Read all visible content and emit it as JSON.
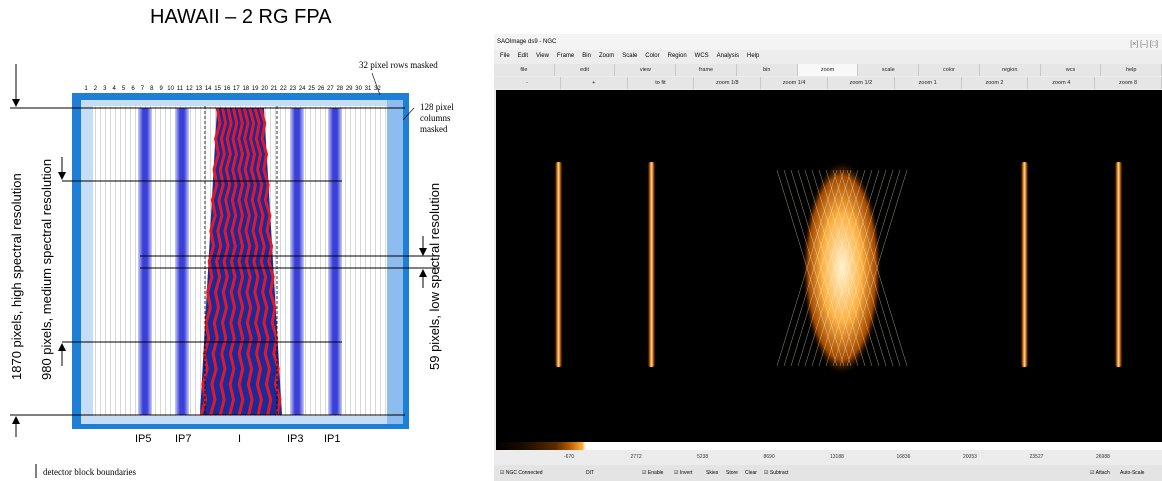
{
  "diagram": {
    "title": "HAWAII – 2 RG FPA",
    "col_numbers": [
      "1",
      "2",
      "3",
      "4",
      "5",
      "6",
      "7",
      "8",
      "9",
      "10",
      "11",
      "12",
      "13",
      "14",
      "15",
      "16",
      "17",
      "18",
      "19",
      "20",
      "21",
      "22",
      "23",
      "24",
      "25",
      "26",
      "27",
      "28",
      "29",
      "30",
      "31",
      "32"
    ],
    "notes": {
      "rows_masked": "32 pixel rows masked",
      "cols_masked": "128 pixel columns masked",
      "boundaries": "detector block boundaries"
    },
    "labels": {
      "high": "1870 pixels, high spectral resolution",
      "medium": "980 pixels, medium spectral resolution",
      "low": "59 pixels, low spectral resolution"
    },
    "ip_labels": [
      "IP5",
      "IP7",
      "I",
      "IP3",
      "IP1"
    ],
    "colors": {
      "frame": "#1e7fd6",
      "light": "#c5ddf5",
      "slit": "#3a3fd8",
      "red": "#e0182a",
      "navy": "#1a2a9a"
    }
  },
  "ds9": {
    "title": "SAOImage ds9 - NGC",
    "window_buttons": "[×]  [–] [□]",
    "menus": [
      "File",
      "Edit",
      "View",
      "Frame",
      "Bin",
      "Zoom",
      "Scale",
      "Color",
      "Region",
      "WCS",
      "Analysis",
      "Help"
    ],
    "buttons1": [
      "file",
      "edit",
      "view",
      "frame",
      "bin",
      "zoom",
      "scale",
      "color",
      "region",
      "wcs",
      "help"
    ],
    "buttons2": [
      "-",
      "+",
      "to fit",
      "zoom 1/8",
      "zoom 1/4",
      "zoom 1/2",
      "zoom 1",
      "zoom 2",
      "zoom 4",
      "zoom 8"
    ],
    "colorbar_ticks": [
      "-670",
      "2772",
      "5238",
      "8690",
      "13188",
      "16836",
      "20053",
      "23527",
      "26988"
    ],
    "status_left": [
      "NGC Connected",
      "DIT",
      "Enable",
      "Invert",
      "Skies",
      "Store",
      "Clear",
      "Subtract"
    ],
    "status_right": [
      "Attach",
      "Auto-Scale"
    ],
    "dit_value": "DIT"
  }
}
